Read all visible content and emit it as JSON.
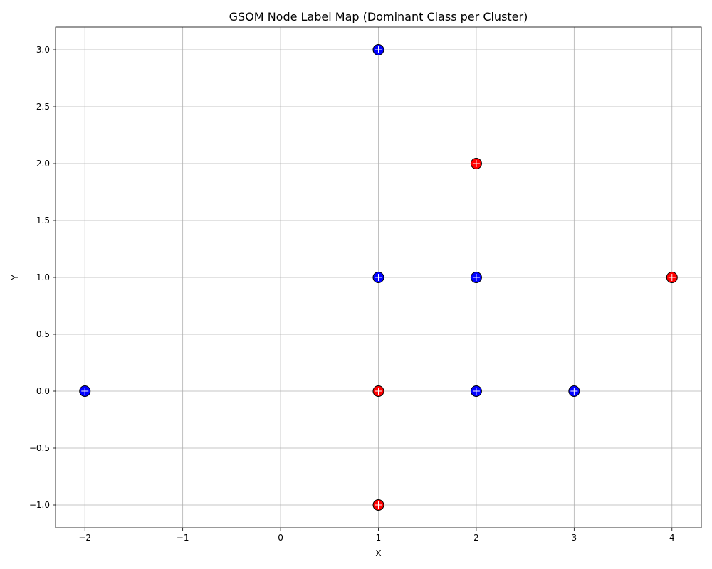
{
  "chart_data": {
    "type": "scatter",
    "title": "GSOM Node Label Map (Dominant Class per Cluster)",
    "xlabel": "X",
    "ylabel": "Y",
    "xlim": [
      -2.3,
      4.3
    ],
    "ylim": [
      -1.2,
      3.2
    ],
    "xticks": [
      -2,
      -1,
      0,
      1,
      2,
      3,
      4
    ],
    "yticks": [
      -1.0,
      -0.5,
      0.0,
      0.5,
      1.0,
      1.5,
      2.0,
      2.5,
      3.0
    ],
    "xtick_labels": [
      "−2",
      "−1",
      "0",
      "1",
      "2",
      "3",
      "4"
    ],
    "ytick_labels": [
      "−1.0",
      "−0.5",
      "0.0",
      "0.5",
      "1.0",
      "1.5",
      "2.0",
      "2.5",
      "3.0"
    ],
    "grid": true,
    "legend": "none",
    "points": [
      {
        "x": 1,
        "y": 3,
        "color": "#0000ff"
      },
      {
        "x": 2,
        "y": 2,
        "color": "#ff0000"
      },
      {
        "x": 1,
        "y": 1,
        "color": "#0000ff"
      },
      {
        "x": 2,
        "y": 1,
        "color": "#0000ff"
      },
      {
        "x": 4,
        "y": 1,
        "color": "#ff0000"
      },
      {
        "x": -2,
        "y": 0,
        "color": "#0000ff"
      },
      {
        "x": 1,
        "y": 0,
        "color": "#ff0000"
      },
      {
        "x": 2,
        "y": 0,
        "color": "#0000ff"
      },
      {
        "x": 3,
        "y": 0,
        "color": "#0000ff"
      },
      {
        "x": 1,
        "y": -1,
        "color": "#ff0000"
      }
    ]
  }
}
